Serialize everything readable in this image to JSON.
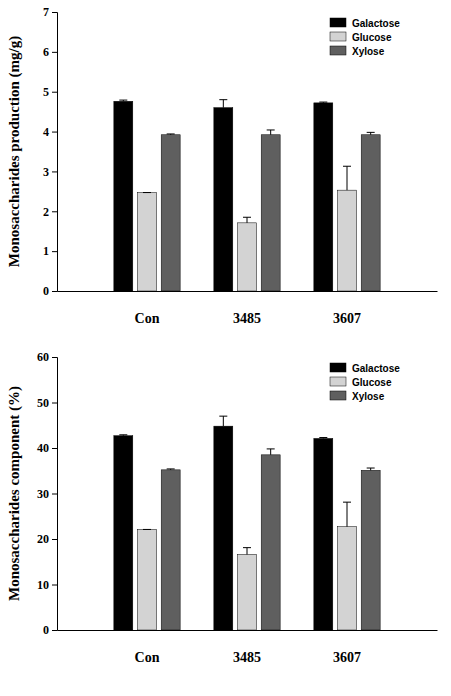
{
  "chart_data": [
    {
      "type": "bar",
      "y_label": "Monosaccharides production (mg/g)",
      "categories": [
        "Con",
        "3485",
        "3607"
      ],
      "series": [
        {
          "name": "Galactose",
          "color": "#000000",
          "values": [
            4.76,
            4.6,
            4.72
          ],
          "errors": [
            0.03,
            0.2,
            0.02
          ]
        },
        {
          "name": "Glucose",
          "color": "#d3d3d3",
          "values": [
            2.47,
            1.71,
            2.53
          ],
          "errors": [
            0.0,
            0.14,
            0.6
          ]
        },
        {
          "name": "Xylose",
          "color": "#5f5f5f",
          "values": [
            3.92,
            3.92,
            3.92
          ],
          "errors": [
            0.02,
            0.12,
            0.06
          ]
        }
      ],
      "ylim": [
        0,
        7
      ],
      "yticks": [
        0,
        1,
        2,
        3,
        4,
        5,
        6,
        7
      ],
      "legend": "upper right",
      "grid": false
    },
    {
      "type": "bar",
      "y_label": "Monosaccharides component (%)",
      "categories": [
        "Con",
        "3485",
        "3607"
      ],
      "series": [
        {
          "name": "Galactose",
          "color": "#000000",
          "values": [
            42.7,
            44.8,
            42.1
          ],
          "errors": [
            0.2,
            2.2,
            0.2
          ]
        },
        {
          "name": "Glucose",
          "color": "#d3d3d3",
          "values": [
            22.1,
            16.6,
            22.7
          ],
          "errors": [
            0.0,
            1.5,
            5.4
          ]
        },
        {
          "name": "Xylose",
          "color": "#5f5f5f",
          "values": [
            35.2,
            38.5,
            35.1
          ],
          "errors": [
            0.2,
            1.3,
            0.5
          ]
        }
      ],
      "ylim": [
        0,
        60
      ],
      "yticks": [
        0,
        10,
        20,
        30,
        40,
        50,
        60
      ],
      "legend": "upper right",
      "grid": false
    }
  ]
}
